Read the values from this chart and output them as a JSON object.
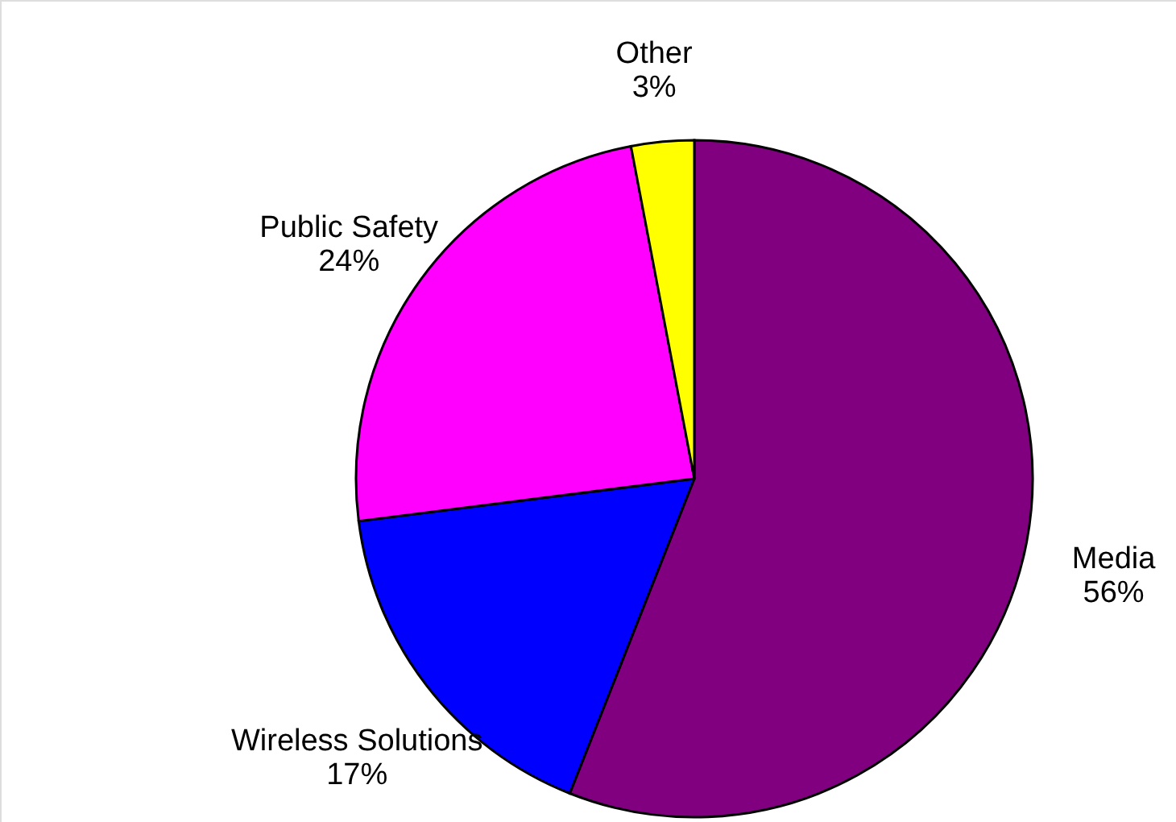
{
  "chart_data": {
    "type": "pie",
    "categories": [
      "Media",
      "Wireless Solutions",
      "Public Safety",
      "Other"
    ],
    "values": [
      56,
      17,
      24,
      3
    ],
    "colors": [
      "#800080",
      "#0000ff",
      "#ff00ff",
      "#ffff00"
    ],
    "value_labels": [
      "56%",
      "17%",
      "24%",
      "3%"
    ],
    "legend": false
  }
}
